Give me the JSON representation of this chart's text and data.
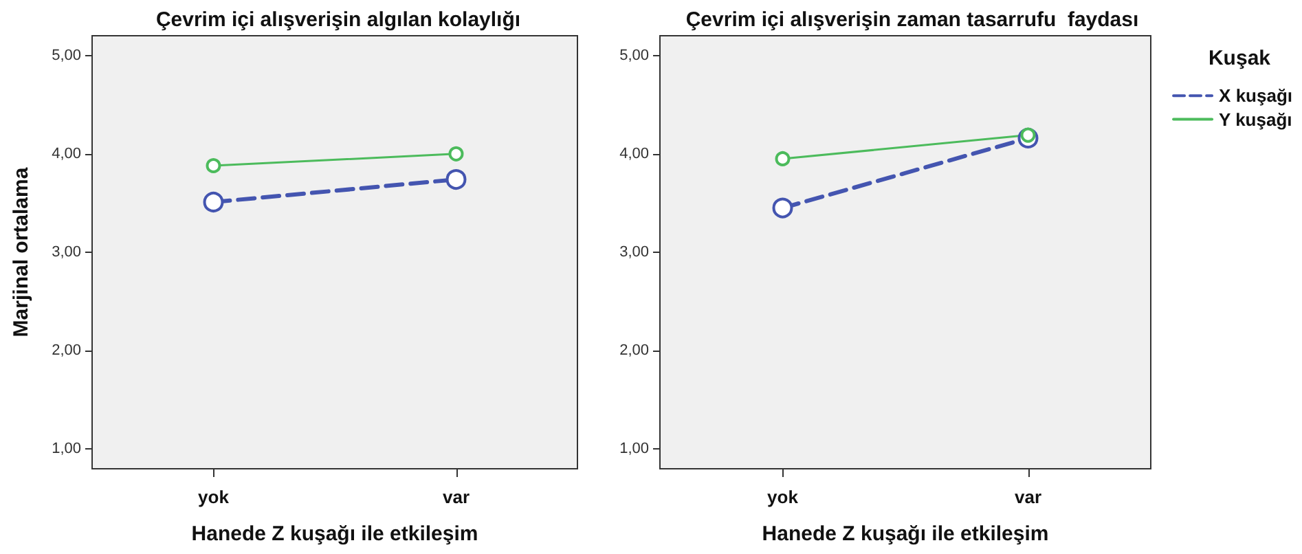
{
  "chart_data": [
    {
      "type": "line",
      "title": "Çevrim içi alışverişin algılan kolaylığı",
      "xlabel": "Hanede Z kuşağı ile etkileşim",
      "ylabel": "Marjinal ortalama",
      "categories": [
        "yok",
        "var"
      ],
      "series": [
        {
          "color": "#4455b0",
          "line_style": "dashed",
          "values": [
            3.51,
            3.74
          ]
        },
        {
          "color": "#4cbb5c",
          "line_style": "solid",
          "values": [
            3.88,
            4.0
          ]
        }
      ],
      "ylim": [
        0.8,
        5.2
      ],
      "yticks": [
        {
          "value": 1,
          "label": "1,00"
        },
        {
          "value": 2,
          "label": "2,00"
        },
        {
          "value": 3,
          "label": "3,00"
        },
        {
          "value": 4,
          "label": "4,00"
        },
        {
          "value": 5,
          "label": "5,00"
        }
      ],
      "marker": "circle",
      "grid": false,
      "legend": false
    },
    {
      "type": "line",
      "title": "Çevrim içi alışverişin zaman tasarrufu  faydası",
      "xlabel": "Hanede Z kuşağı ile etkileşim",
      "legend_title": "Kuşak",
      "categories": [
        "yok",
        "var"
      ],
      "series": [
        {
          "name": "X kuşağı",
          "color": "#4455b0",
          "line_style": "dashed",
          "values": [
            3.45,
            4.16
          ]
        },
        {
          "name": "Y kuşağı",
          "color": "#4cbb5c",
          "line_style": "solid",
          "values": [
            3.95,
            4.19
          ]
        }
      ],
      "ylim": [
        0.8,
        5.2
      ],
      "yticks": [
        {
          "value": 1,
          "label": "1,00"
        },
        {
          "value": 2,
          "label": "2,00"
        },
        {
          "value": 3,
          "label": "3,00"
        },
        {
          "value": 4,
          "label": "4,00"
        },
        {
          "value": 5,
          "label": "5,00"
        }
      ],
      "marker": "circle",
      "grid": false,
      "legend": "right"
    }
  ]
}
